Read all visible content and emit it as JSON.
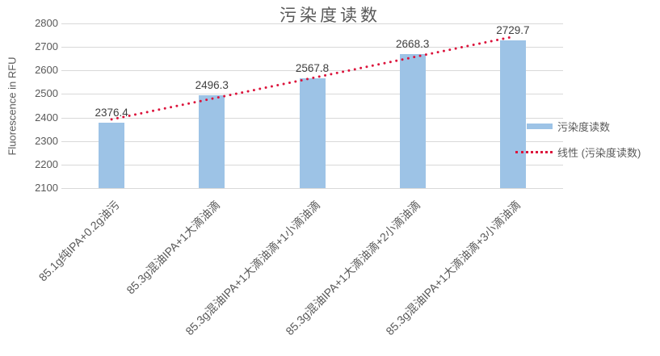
{
  "chart_data": {
    "type": "bar",
    "title": "污染度读数",
    "ylabel": "Fluorescence in RFU",
    "categories": [
      "85.1g纯IPA+0.2g油污",
      "85.3g混油IPA+1大滴油滴",
      "85.3g混油IPA+1大滴油滴+1小滴油滴",
      "85.3g混油IPA+1大滴油滴+2小滴油滴",
      "85.3g混油IPA+1大滴油滴+3小滴油滴"
    ],
    "values": [
      2376.4,
      2496.3,
      2567.8,
      2668.3,
      2729.7
    ],
    "data_labels": [
      "2376.4",
      "2496.3",
      "2567.8",
      "2668.3",
      "2729.7"
    ],
    "ylim": [
      2100,
      2800
    ],
    "yticks": [
      2100,
      2200,
      2300,
      2400,
      2500,
      2600,
      2700,
      2800
    ],
    "grid": true,
    "bar_color": "#9dc3e6",
    "trendline": {
      "type": "linear",
      "color": "#dc143c"
    },
    "legend": {
      "position": "right",
      "items": [
        {
          "label": "污染度读数",
          "swatch": "bar"
        },
        {
          "label": "线性 (污染度读数)",
          "swatch": "dotted-line"
        }
      ]
    }
  }
}
